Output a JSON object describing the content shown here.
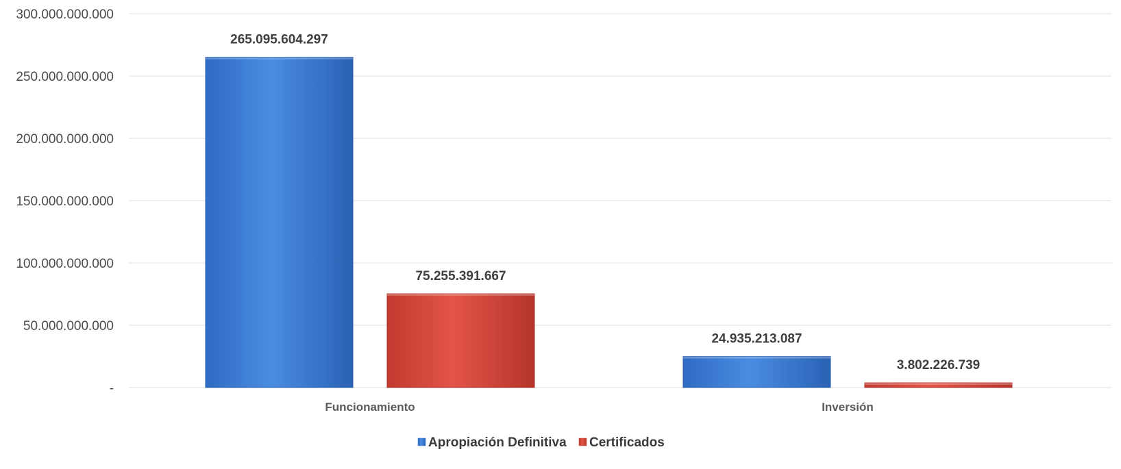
{
  "chart_data": {
    "type": "bar",
    "categories": [
      "Funcionamiento",
      "Inversión"
    ],
    "series": [
      {
        "name": "Apropiación Definitiva",
        "color": "#3f7fd3",
        "values": [
          265095604297,
          24935213087
        ],
        "labels": [
          "265.095.604.297",
          "24.935.213.087"
        ]
      },
      {
        "name": "Certificados",
        "color": "#d9493d",
        "values": [
          75255391667,
          3802226739
        ],
        "labels": [
          "75.255.391.667",
          "3.802.226.739"
        ]
      }
    ],
    "ylim": [
      0,
      300000000000
    ],
    "yticks": [
      {
        "value": 0,
        "label": "-"
      },
      {
        "value": 50000000000,
        "label": "50.000.000.000"
      },
      {
        "value": 100000000000,
        "label": "100.000.000.000"
      },
      {
        "value": 150000000000,
        "label": "150.000.000.000"
      },
      {
        "value": 200000000000,
        "label": "200.000.000.000"
      },
      {
        "value": 250000000000,
        "label": "250.000.000.000"
      },
      {
        "value": 300000000000,
        "label": "300.000.000.000"
      }
    ],
    "grid": true,
    "legend_position": "bottom-center"
  }
}
